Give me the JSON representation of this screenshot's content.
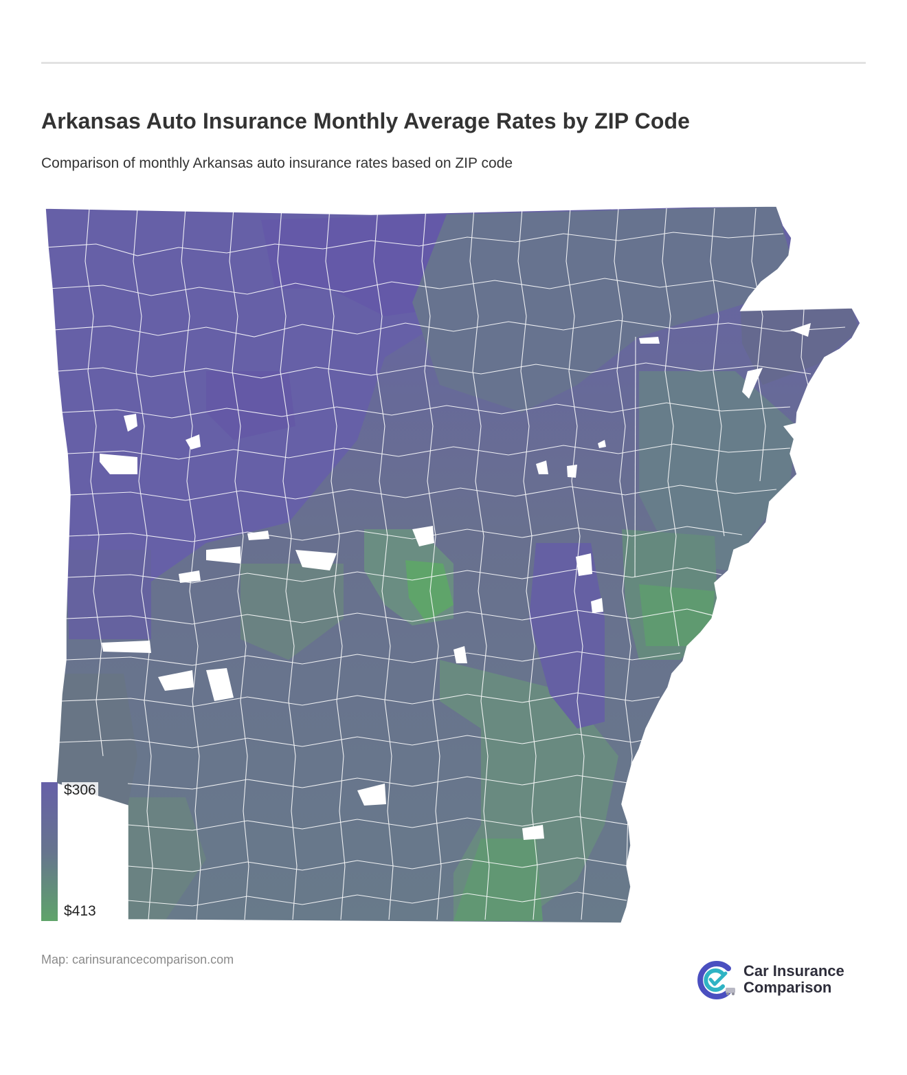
{
  "header": {
    "title": "Arkansas Auto Insurance Monthly Average Rates by ZIP Code",
    "subtitle": "Comparison of monthly Arkansas auto insurance rates based on ZIP code"
  },
  "map": {
    "region": "Arkansas",
    "value_type": "monthly average auto insurance rate",
    "color_scale": {
      "min_label": "$413",
      "max_label": "$306",
      "color_low_rate": "#6660a8",
      "color_mid": "#66748e",
      "color_high_rate": "#5fa46a"
    },
    "colors": {
      "purple": "#665fa6",
      "slate": "#67778f",
      "teal": "#6a8a86",
      "green": "#5fa46a",
      "boundary": "#ffffff"
    }
  },
  "legend": {
    "max_label": "$306",
    "min_label": "$413"
  },
  "footer": {
    "source": "Map: carinsurancecomparison.com",
    "brand_line1": "Car Insurance",
    "brand_line2": "Comparison"
  }
}
